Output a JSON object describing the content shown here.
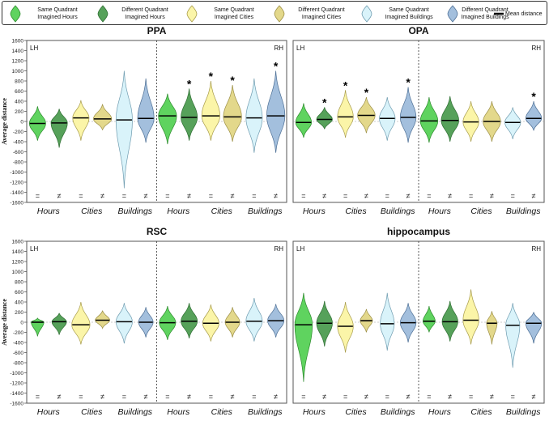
{
  "legend": {
    "items": [
      {
        "label_1": "Same Quadrant",
        "label_2": "Imagined Hours",
        "color": "#5fd35f",
        "edge": "#2e8b2e"
      },
      {
        "label_1": "Different Quadrant",
        "label_2": "Imagined Hours",
        "color": "#56a15a",
        "edge": "#2f6e33"
      },
      {
        "label_1": "Same Quadrant",
        "label_2": "Imagined Cities",
        "color": "#fbf5a8",
        "edge": "#a89c4a"
      },
      {
        "label_1": "Different Quadrant",
        "label_2": "Imagined Cities",
        "color": "#e3d88b",
        "edge": "#9c8f45"
      },
      {
        "label_1": "Same Quadrant",
        "label_2": "Imagined Buildings",
        "color": "#d9f3fa",
        "edge": "#6f9cb0"
      },
      {
        "label_1": "Different Quadrant",
        "label_2": "Imagined Buildings",
        "color": "#a3bfdd",
        "edge": "#4d6f95"
      }
    ],
    "mean_label": "Mean distance"
  },
  "chart_data": [
    {
      "type": "violin",
      "title": "PPA",
      "ylabel": "Average distance",
      "ylim": [
        -1600,
        1600
      ],
      "yticks": [
        1600,
        1400,
        1200,
        1000,
        800,
        600,
        400,
        200,
        0,
        -200,
        -400,
        -600,
        -800,
        -1000,
        -1200,
        -1400,
        -1600
      ],
      "hemispheres": [
        "LH",
        "RH"
      ],
      "categories": [
        "Hours",
        "Cities",
        "Buildings",
        "Hours",
        "Cities",
        "Buildings"
      ],
      "violins": [
        {
          "sym": "=",
          "mean": -40,
          "min": -380,
          "max": 300,
          "width": 0.9,
          "star": false
        },
        {
          "sym": "≠",
          "mean": -30,
          "min": -520,
          "max": 250,
          "width": 0.9,
          "star": false
        },
        {
          "sym": "=",
          "mean": 70,
          "min": -380,
          "max": 420,
          "width": 0.9,
          "star": false
        },
        {
          "sym": "≠",
          "mean": 50,
          "min": -170,
          "max": 340,
          "width": 1.0,
          "star": false
        },
        {
          "sym": "=",
          "mean": 30,
          "min": -1320,
          "max": 1000,
          "width": 0.9,
          "star": false
        },
        {
          "sym": "≠",
          "mean": 60,
          "min": -420,
          "max": 850,
          "width": 0.9,
          "star": false
        },
        {
          "sym": "=",
          "mean": 110,
          "min": -450,
          "max": 550,
          "width": 1.0,
          "star": false
        },
        {
          "sym": "≠",
          "mean": 80,
          "min": -380,
          "max": 650,
          "width": 0.9,
          "star": true
        },
        {
          "sym": "=",
          "mean": 110,
          "min": -380,
          "max": 800,
          "width": 1.0,
          "star": true
        },
        {
          "sym": "≠",
          "mean": 90,
          "min": -400,
          "max": 720,
          "width": 1.0,
          "star": true
        },
        {
          "sym": "=",
          "mean": 70,
          "min": -620,
          "max": 850,
          "width": 0.9,
          "star": false
        },
        {
          "sym": "≠",
          "mean": 110,
          "min": -620,
          "max": 1000,
          "width": 1.0,
          "star": true
        }
      ]
    },
    {
      "type": "violin",
      "title": "OPA",
      "ylabel": "",
      "ylim": [
        -1600,
        1600
      ],
      "yticks": [],
      "hemispheres": [
        "LH",
        "RH"
      ],
      "categories": [
        "Hours",
        "Cities",
        "Buildings",
        "Hours",
        "Cities",
        "Buildings"
      ],
      "violins": [
        {
          "sym": "=",
          "mean": -20,
          "min": -320,
          "max": 360,
          "width": 0.9,
          "star": false
        },
        {
          "sym": "≠",
          "mean": 40,
          "min": -150,
          "max": 280,
          "width": 0.9,
          "star": true
        },
        {
          "sym": "=",
          "mean": 90,
          "min": -320,
          "max": 620,
          "width": 0.9,
          "star": true
        },
        {
          "sym": "≠",
          "mean": 120,
          "min": -230,
          "max": 480,
          "width": 1.0,
          "star": true
        },
        {
          "sym": "=",
          "mean": 60,
          "min": -380,
          "max": 480,
          "width": 0.9,
          "star": false
        },
        {
          "sym": "≠",
          "mean": 80,
          "min": -420,
          "max": 680,
          "width": 0.9,
          "star": true
        },
        {
          "sym": "=",
          "mean": 10,
          "min": -420,
          "max": 480,
          "width": 1.0,
          "star": false
        },
        {
          "sym": "≠",
          "mean": 20,
          "min": -400,
          "max": 500,
          "width": 1.0,
          "star": false
        },
        {
          "sym": "=",
          "mean": -10,
          "min": -400,
          "max": 400,
          "width": 0.9,
          "star": false
        },
        {
          "sym": "≠",
          "mean": 0,
          "min": -400,
          "max": 400,
          "width": 1.0,
          "star": false
        },
        {
          "sym": "=",
          "mean": -20,
          "min": -350,
          "max": 280,
          "width": 0.9,
          "star": false
        },
        {
          "sym": "≠",
          "mean": 60,
          "min": -180,
          "max": 400,
          "width": 0.9,
          "star": true
        }
      ]
    },
    {
      "type": "violin",
      "title": "RSC",
      "ylabel": "Average distance",
      "ylim": [
        -1600,
        1600
      ],
      "yticks": [
        1600,
        1400,
        1200,
        1000,
        800,
        600,
        400,
        200,
        0,
        -200,
        -400,
        -600,
        -800,
        -1000,
        -1200,
        -1400,
        -1600
      ],
      "hemispheres": [
        "LH",
        "RH"
      ],
      "categories": [
        "Hours",
        "Cities",
        "Buildings",
        "Hours",
        "Cities",
        "Buildings"
      ],
      "violins": [
        {
          "sym": "=",
          "mean": 0,
          "min": -280,
          "max": 80,
          "width": 0.7,
          "star": false
        },
        {
          "sym": "≠",
          "mean": 10,
          "min": -250,
          "max": 180,
          "width": 0.8,
          "star": false
        },
        {
          "sym": "=",
          "mean": -50,
          "min": -440,
          "max": 400,
          "width": 1.0,
          "star": false
        },
        {
          "sym": "≠",
          "mean": 40,
          "min": -120,
          "max": 230,
          "width": 0.8,
          "star": false
        },
        {
          "sym": "=",
          "mean": 10,
          "min": -420,
          "max": 380,
          "width": 0.9,
          "star": false
        },
        {
          "sym": "≠",
          "mean": 0,
          "min": -300,
          "max": 300,
          "width": 0.8,
          "star": false
        },
        {
          "sym": "=",
          "mean": -10,
          "min": -350,
          "max": 320,
          "width": 0.9,
          "star": false
        },
        {
          "sym": "≠",
          "mean": 20,
          "min": -320,
          "max": 380,
          "width": 0.9,
          "star": false
        },
        {
          "sym": "=",
          "mean": -20,
          "min": -380,
          "max": 350,
          "width": 0.9,
          "star": false
        },
        {
          "sym": "≠",
          "mean": 0,
          "min": -300,
          "max": 300,
          "width": 0.8,
          "star": false
        },
        {
          "sym": "=",
          "mean": 20,
          "min": -380,
          "max": 480,
          "width": 0.9,
          "star": false
        },
        {
          "sym": "≠",
          "mean": 30,
          "min": -300,
          "max": 360,
          "width": 0.9,
          "star": false
        }
      ]
    },
    {
      "type": "violin",
      "title": "hippocampus",
      "ylabel": "",
      "ylim": [
        -1600,
        1600
      ],
      "yticks": [],
      "hemispheres": [
        "LH",
        "RH"
      ],
      "categories": [
        "Hours",
        "Cities",
        "Buildings",
        "Hours",
        "Cities",
        "Buildings"
      ],
      "violins": [
        {
          "sym": "=",
          "mean": -50,
          "min": -1180,
          "max": 580,
          "width": 1.0,
          "star": false
        },
        {
          "sym": "≠",
          "mean": -20,
          "min": -480,
          "max": 420,
          "width": 0.9,
          "star": false
        },
        {
          "sym": "=",
          "mean": -80,
          "min": -600,
          "max": 400,
          "width": 0.9,
          "star": false
        },
        {
          "sym": "≠",
          "mean": 30,
          "min": -200,
          "max": 260,
          "width": 0.7,
          "star": false
        },
        {
          "sym": "=",
          "mean": -30,
          "min": -560,
          "max": 580,
          "width": 0.8,
          "star": false
        },
        {
          "sym": "≠",
          "mean": -10,
          "min": -400,
          "max": 380,
          "width": 0.9,
          "star": false
        },
        {
          "sym": "=",
          "mean": 20,
          "min": -200,
          "max": 320,
          "width": 0.7,
          "star": false
        },
        {
          "sym": "≠",
          "mean": 10,
          "min": -380,
          "max": 420,
          "width": 0.9,
          "star": false
        },
        {
          "sym": "=",
          "mean": 40,
          "min": -440,
          "max": 650,
          "width": 0.9,
          "star": false
        },
        {
          "sym": "≠",
          "mean": -20,
          "min": -440,
          "max": 220,
          "width": 0.6,
          "star": false
        },
        {
          "sym": "=",
          "mean": -60,
          "min": -900,
          "max": 380,
          "width": 0.8,
          "star": false
        },
        {
          "sym": "≠",
          "mean": -20,
          "min": -420,
          "max": 200,
          "width": 0.9,
          "star": false
        }
      ]
    }
  ]
}
